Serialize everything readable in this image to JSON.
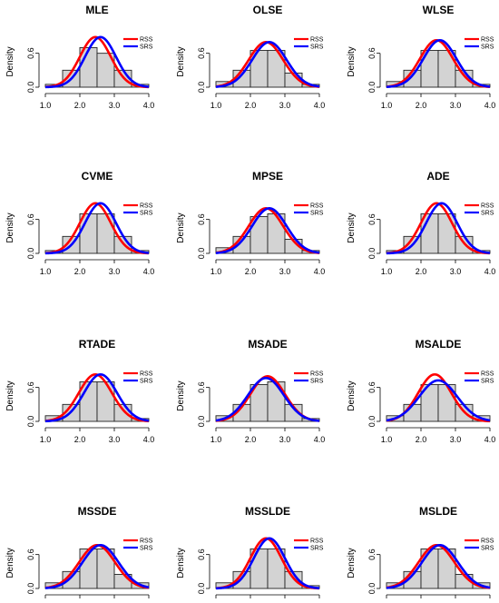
{
  "colors": {
    "rss": "#ff0000",
    "srs": "#0000ff",
    "bar_fill": "#d3d3d3",
    "bar_stroke": "#222222"
  },
  "legend_labels": [
    "RSS",
    "SRS"
  ],
  "ylabel": "Density",
  "xticks": [
    "1.0",
    "2.0",
    "3.0",
    "4.0"
  ],
  "yticks": [
    "0.0",
    "0.6"
  ],
  "chart_data": [
    {
      "type": "bar",
      "title": "MLE",
      "xlim": [
        1,
        4
      ],
      "ylim": [
        0,
        0.9
      ],
      "bin_edges": [
        1.0,
        1.5,
        2.0,
        2.5,
        3.0,
        3.5,
        4.0
      ],
      "densities": [
        0.05,
        0.3,
        0.7,
        0.6,
        0.3,
        0.05
      ],
      "series": [
        {
          "name": "RSS",
          "mean": 2.45,
          "sd": 0.45
        },
        {
          "name": "SRS",
          "mean": 2.6,
          "sd": 0.45
        }
      ]
    },
    {
      "type": "bar",
      "title": "OLSE",
      "xlim": [
        1,
        4
      ],
      "ylim": [
        0,
        0.9
      ],
      "bin_edges": [
        1.0,
        1.5,
        2.0,
        2.5,
        3.0,
        3.5,
        4.0
      ],
      "densities": [
        0.1,
        0.3,
        0.65,
        0.65,
        0.25,
        0.05
      ],
      "series": [
        {
          "name": "RSS",
          "mean": 2.45,
          "sd": 0.5
        },
        {
          "name": "SRS",
          "mean": 2.55,
          "sd": 0.5
        }
      ]
    },
    {
      "type": "bar",
      "title": "WLSE",
      "xlim": [
        1,
        4
      ],
      "ylim": [
        0,
        0.9
      ],
      "bin_edges": [
        1.0,
        1.5,
        2.0,
        2.5,
        3.0,
        3.5,
        4.0
      ],
      "densities": [
        0.1,
        0.3,
        0.65,
        0.65,
        0.3,
        0.05
      ],
      "series": [
        {
          "name": "RSS",
          "mean": 2.45,
          "sd": 0.48
        },
        {
          "name": "SRS",
          "mean": 2.55,
          "sd": 0.48
        }
      ]
    },
    {
      "type": "bar",
      "title": "CVME",
      "xlim": [
        1,
        4
      ],
      "ylim": [
        0,
        0.9
      ],
      "bin_edges": [
        1.0,
        1.5,
        2.0,
        2.5,
        3.0,
        3.5,
        4.0
      ],
      "densities": [
        0.05,
        0.3,
        0.7,
        0.7,
        0.3,
        0.05
      ],
      "series": [
        {
          "name": "RSS",
          "mean": 2.45,
          "sd": 0.45
        },
        {
          "name": "SRS",
          "mean": 2.6,
          "sd": 0.45
        }
      ]
    },
    {
      "type": "bar",
      "title": "MPSE",
      "xlim": [
        1,
        4
      ],
      "ylim": [
        0,
        0.9
      ],
      "bin_edges": [
        1.0,
        1.5,
        2.0,
        2.5,
        3.0,
        3.5,
        4.0
      ],
      "densities": [
        0.1,
        0.3,
        0.65,
        0.7,
        0.25,
        0.05
      ],
      "series": [
        {
          "name": "RSS",
          "mean": 2.45,
          "sd": 0.5
        },
        {
          "name": "SRS",
          "mean": 2.55,
          "sd": 0.5
        }
      ]
    },
    {
      "type": "bar",
      "title": "ADE",
      "xlim": [
        1,
        4
      ],
      "ylim": [
        0,
        0.9
      ],
      "bin_edges": [
        1.0,
        1.5,
        2.0,
        2.5,
        3.0,
        3.5,
        4.0
      ],
      "densities": [
        0.05,
        0.3,
        0.7,
        0.7,
        0.3,
        0.05
      ],
      "series": [
        {
          "name": "RSS",
          "mean": 2.45,
          "sd": 0.45
        },
        {
          "name": "SRS",
          "mean": 2.6,
          "sd": 0.45
        }
      ]
    },
    {
      "type": "bar",
      "title": "RTADE",
      "xlim": [
        1,
        4
      ],
      "ylim": [
        0,
        0.9
      ],
      "bin_edges": [
        1.0,
        1.5,
        2.0,
        2.5,
        3.0,
        3.5,
        4.0
      ],
      "densities": [
        0.1,
        0.3,
        0.7,
        0.7,
        0.3,
        0.05
      ],
      "series": [
        {
          "name": "RSS",
          "mean": 2.45,
          "sd": 0.48
        },
        {
          "name": "SRS",
          "mean": 2.6,
          "sd": 0.48
        }
      ]
    },
    {
      "type": "bar",
      "title": "MSADE",
      "xlim": [
        1,
        4
      ],
      "ylim": [
        0,
        0.9
      ],
      "bin_edges": [
        1.0,
        1.5,
        2.0,
        2.5,
        3.0,
        3.5,
        4.0
      ],
      "densities": [
        0.1,
        0.3,
        0.65,
        0.7,
        0.3,
        0.05
      ],
      "series": [
        {
          "name": "RSS",
          "mean": 2.5,
          "sd": 0.5
        },
        {
          "name": "SRS",
          "mean": 2.45,
          "sd": 0.52
        }
      ]
    },
    {
      "type": "bar",
      "title": "MSALDE",
      "xlim": [
        1,
        4
      ],
      "ylim": [
        0,
        0.9
      ],
      "bin_edges": [
        1.0,
        1.5,
        2.0,
        2.5,
        3.0,
        3.5,
        4.0
      ],
      "densities": [
        0.1,
        0.3,
        0.65,
        0.65,
        0.3,
        0.1
      ],
      "series": [
        {
          "name": "RSS",
          "mean": 2.4,
          "sd": 0.48
        },
        {
          "name": "SRS",
          "mean": 2.5,
          "sd": 0.55
        }
      ]
    },
    {
      "type": "bar",
      "title": "MSSDE",
      "xlim": [
        1,
        4
      ],
      "ylim": [
        0,
        0.9
      ],
      "bin_edges": [
        1.0,
        1.5,
        2.0,
        2.5,
        3.0,
        3.5,
        4.0
      ],
      "densities": [
        0.1,
        0.3,
        0.7,
        0.7,
        0.25,
        0.1
      ],
      "series": [
        {
          "name": "RSS",
          "mean": 2.5,
          "sd": 0.52
        },
        {
          "name": "SRS",
          "mean": 2.6,
          "sd": 0.52
        }
      ]
    },
    {
      "type": "bar",
      "title": "MSSLDE",
      "xlim": [
        1,
        4
      ],
      "ylim": [
        0,
        0.9
      ],
      "bin_edges": [
        1.0,
        1.5,
        2.0,
        2.5,
        3.0,
        3.5,
        4.0
      ],
      "densities": [
        0.1,
        0.3,
        0.7,
        0.7,
        0.3,
        0.05
      ],
      "series": [
        {
          "name": "RSS",
          "mean": 2.45,
          "sd": 0.45
        },
        {
          "name": "SRS",
          "mean": 2.55,
          "sd": 0.45
        }
      ]
    },
    {
      "type": "bar",
      "title": "MSLDE",
      "xlim": [
        1,
        4
      ],
      "ylim": [
        0,
        0.9
      ],
      "bin_edges": [
        1.0,
        1.5,
        2.0,
        2.5,
        3.0,
        3.5,
        4.0
      ],
      "densities": [
        0.1,
        0.3,
        0.7,
        0.7,
        0.25,
        0.1
      ],
      "series": [
        {
          "name": "RSS",
          "mean": 2.45,
          "sd": 0.52
        },
        {
          "name": "SRS",
          "mean": 2.55,
          "sd": 0.52
        }
      ]
    }
  ]
}
